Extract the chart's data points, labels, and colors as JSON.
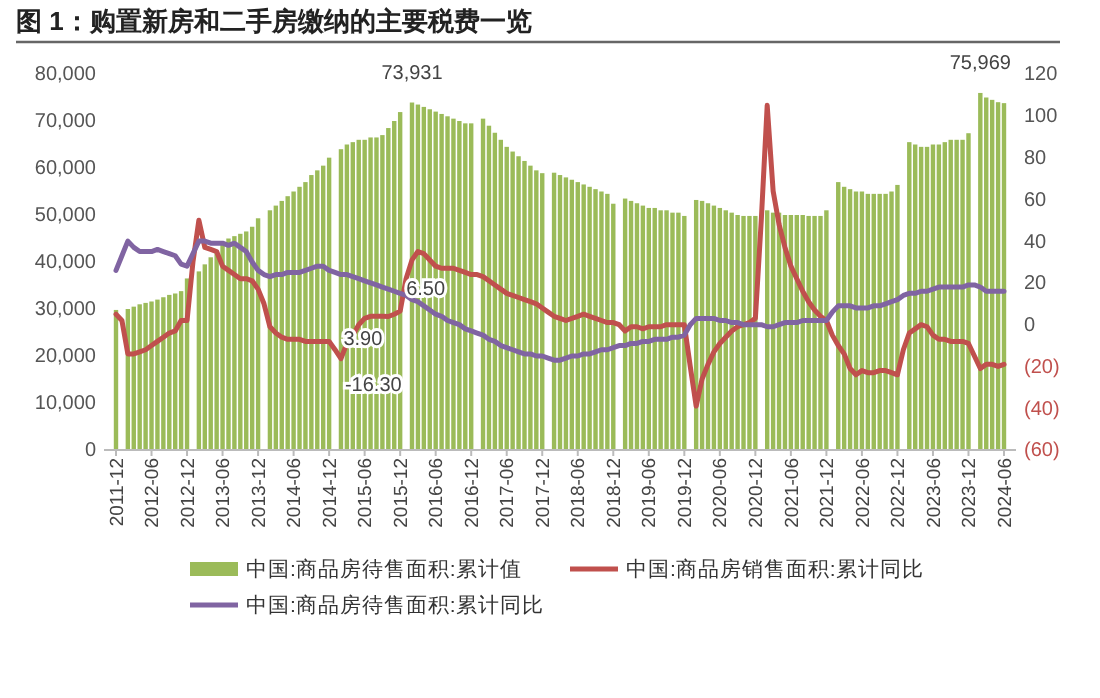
{
  "chart_data": {
    "type": "bar",
    "title": "图 1：购置新房和二手房缴纳的主要税费一览",
    "categories": [
      "2011-12",
      null,
      null,
      null,
      null,
      null,
      "2012-06",
      null,
      null,
      null,
      null,
      null,
      "2012-12",
      null,
      null,
      null,
      null,
      null,
      "2013-06",
      null,
      null,
      null,
      null,
      null,
      "2013-12",
      null,
      null,
      null,
      null,
      null,
      "2014-06",
      null,
      null,
      null,
      null,
      null,
      "2014-12",
      null,
      null,
      null,
      null,
      null,
      "2015-06",
      null,
      null,
      null,
      null,
      null,
      "2015-12",
      null,
      null,
      null,
      null,
      null,
      "2016-06",
      null,
      null,
      null,
      null,
      null,
      "2016-12",
      null,
      null,
      null,
      null,
      null,
      "2017-06",
      null,
      null,
      null,
      null,
      null,
      "2017-12",
      null,
      null,
      null,
      null,
      null,
      "2018-06",
      null,
      null,
      null,
      null,
      null,
      "2018-12",
      null,
      null,
      null,
      null,
      null,
      "2019-06",
      null,
      null,
      null,
      null,
      null,
      "2019-12",
      null,
      null,
      null,
      null,
      null,
      "2020-06",
      null,
      null,
      null,
      null,
      null,
      "2020-12",
      null,
      null,
      null,
      null,
      null,
      "2021-06",
      null,
      null,
      null,
      null,
      null,
      "2021-12",
      null,
      null,
      null,
      null,
      null,
      "2022-06",
      null,
      null,
      null,
      null,
      null,
      "2022-12",
      null,
      null,
      null,
      null,
      null,
      "2023-06",
      null,
      null,
      null,
      null,
      null,
      "2023-12",
      null,
      null,
      null,
      null,
      null,
      "2024-06"
    ],
    "series": [
      {
        "name": "中国:商品房待售面积:累计值",
        "color": "#9bbb59",
        "values": [
          29800,
          null,
          30000,
          30500,
          31000,
          31300,
          31600,
          32000,
          32500,
          33000,
          33300,
          33800,
          36500,
          null,
          38000,
          39500,
          41000,
          42500,
          44000,
          45000,
          45500,
          46000,
          46500,
          47500,
          49300,
          null,
          51000,
          52000,
          53000,
          54000,
          55000,
          56000,
          57000,
          58500,
          59500,
          60500,
          62200,
          null,
          64000,
          65000,
          65500,
          66000,
          66000,
          66500,
          66500,
          67000,
          68500,
          70000,
          71900,
          null,
          73931,
          73500,
          73000,
          72500,
          72000,
          71500,
          71000,
          70500,
          70000,
          69500,
          69500,
          null,
          70500,
          69000,
          67500,
          66000,
          64500,
          63500,
          62500,
          61500,
          60500,
          59500,
          58900,
          null,
          59000,
          58500,
          58000,
          57500,
          57000,
          56500,
          56000,
          55500,
          55000,
          54500,
          52400,
          null,
          53500,
          53000,
          52500,
          52000,
          51500,
          51500,
          51000,
          51000,
          50500,
          50500,
          49800,
          null,
          53200,
          53000,
          52500,
          52000,
          51500,
          51000,
          50500,
          50000,
          49800,
          49800,
          49800,
          null,
          51000,
          50500,
          50500,
          50000,
          50000,
          50000,
          50000,
          49800,
          49800,
          49800,
          51000,
          null,
          57000,
          56000,
          55500,
          55000,
          55000,
          54500,
          54500,
          54500,
          54500,
          55000,
          56400,
          null,
          65500,
          65000,
          64500,
          64500,
          65000,
          65000,
          65500,
          66000,
          66000,
          66000,
          67400,
          null,
          75969,
          75000,
          74500,
          74000,
          73800
        ],
        "value_labels": [
          null,
          null,
          null,
          null,
          null,
          null,
          null,
          null,
          null,
          null,
          null,
          null,
          null,
          null,
          null,
          null,
          null,
          null,
          null,
          null,
          null,
          null,
          null,
          null,
          null,
          null,
          null,
          null,
          null,
          null,
          null,
          null,
          null,
          null,
          null,
          null,
          null,
          null,
          null,
          null,
          null,
          null,
          null,
          null,
          null,
          null,
          null,
          null,
          null,
          null,
          "73,931",
          null,
          null,
          null,
          null,
          null,
          null,
          null,
          null,
          null,
          null,
          null,
          null,
          null,
          null,
          null,
          null,
          null,
          null,
          null,
          null,
          null,
          null,
          null,
          null,
          null,
          null,
          null,
          null,
          null,
          null,
          null,
          null,
          null,
          null,
          null,
          null,
          null,
          null,
          null,
          null,
          null,
          null,
          null,
          null,
          null,
          null,
          null,
          null,
          null,
          null,
          null,
          null,
          null,
          null,
          null,
          null,
          null,
          null,
          null,
          null,
          null,
          null,
          null,
          null,
          null,
          null,
          null,
          null,
          null,
          null,
          null,
          null,
          null,
          null,
          null,
          null,
          null,
          null,
          null,
          null,
          null,
          null,
          null,
          null,
          null,
          null,
          null,
          null,
          null,
          null,
          null,
          null,
          null,
          null,
          null,
          "75,969",
          null,
          null,
          null,
          null
        ]
      },
      {
        "name": "中国:商品房销售面积:累计同比",
        "type": "line",
        "axis": "y2",
        "color": "#c0504d",
        "values": [
          5,
          2,
          -14,
          -14,
          -13,
          -12,
          -10,
          -8,
          -6,
          -4,
          -3,
          2,
          2,
          30,
          50,
          37,
          36,
          35,
          28,
          26,
          24,
          22,
          22,
          21,
          17,
          10,
          -1,
          -4,
          -6,
          -7,
          -7,
          -7,
          -8,
          -8,
          -8,
          -8,
          -8,
          -12,
          -16.3,
          -9,
          -5,
          0,
          3,
          4,
          4,
          4,
          3.9,
          5,
          6.5,
          22,
          31,
          35,
          34,
          31,
          28,
          27,
          27,
          27,
          26,
          25,
          24,
          24,
          23,
          21,
          19,
          17,
          15,
          14,
          13,
          12,
          11,
          10,
          8,
          6,
          4,
          3,
          2,
          3,
          4,
          5,
          4,
          3,
          2,
          1,
          1,
          0,
          -3,
          -1,
          -1,
          -2,
          -1,
          -1,
          -1,
          0,
          0,
          0,
          0,
          -20,
          -39,
          -26,
          -19,
          -13,
          -9,
          -6,
          -3,
          -1,
          0,
          1,
          3,
          50,
          105,
          64,
          48,
          37,
          28,
          22,
          16,
          11,
          7,
          4,
          2,
          -5,
          -10,
          -14,
          -21,
          -24,
          -22,
          -23,
          -23,
          -22,
          -22,
          -23,
          -24,
          -12,
          -4,
          -2,
          0,
          -1,
          -5,
          -7,
          -7,
          -8,
          -8,
          -8,
          -9,
          -15,
          -21,
          -19,
          -19,
          -20,
          -19
        ],
        "value_labels": [
          null,
          null,
          null,
          null,
          null,
          null,
          null,
          null,
          null,
          null,
          null,
          null,
          null,
          null,
          null,
          null,
          null,
          null,
          null,
          null,
          null,
          null,
          null,
          null,
          null,
          null,
          null,
          null,
          null,
          null,
          null,
          null,
          null,
          null,
          null,
          null,
          null,
          null,
          "-16.30",
          null,
          null,
          null,
          null,
          null,
          null,
          null,
          "3.90",
          null,
          "6.50",
          null,
          null,
          null,
          null,
          null,
          null,
          null,
          null,
          null,
          null,
          null,
          null,
          null,
          null,
          null,
          null,
          null,
          null,
          null,
          null,
          null,
          null,
          null,
          null,
          null,
          null,
          null,
          null,
          null,
          null,
          null,
          null,
          null,
          null,
          null,
          null,
          null,
          null,
          null,
          null,
          null,
          null,
          null,
          null,
          null,
          null,
          null,
          null,
          null,
          null,
          null,
          null,
          null,
          null,
          null,
          null,
          null,
          null,
          null,
          null,
          null,
          null,
          null,
          null,
          null,
          null,
          null,
          null,
          null,
          null,
          null,
          null,
          null,
          null,
          null,
          null,
          null,
          null,
          null,
          null,
          null,
          null,
          null,
          null,
          null,
          null,
          null,
          null,
          null,
          null,
          null,
          null,
          null,
          null,
          null,
          null,
          null,
          null,
          null,
          null,
          null,
          null
        ]
      },
      {
        "name": "中国:商品房待售面积:累计同比",
        "type": "line",
        "axis": "y2",
        "color": "#8064a2",
        "values": [
          26,
          33,
          40,
          37,
          35,
          35,
          35,
          36,
          35,
          34,
          33,
          29,
          28,
          34,
          40,
          40,
          39,
          39,
          39,
          38,
          39,
          37,
          35,
          30,
          26,
          24,
          23,
          24,
          24,
          25,
          25,
          25,
          26,
          27,
          28,
          28,
          26,
          25,
          24,
          24,
          23,
          22,
          21,
          20,
          19,
          18,
          17,
          16,
          15,
          14,
          12,
          11,
          9,
          7,
          5,
          4,
          2,
          1,
          0,
          -2,
          -3,
          -4,
          -5,
          -7,
          -8,
          -10,
          -11,
          -12,
          -13,
          -14,
          -14,
          -15,
          -15,
          -16,
          -17,
          -17,
          -16,
          -15,
          -15,
          -14,
          -14,
          -13,
          -12,
          -12,
          -11,
          -10,
          -10,
          -9,
          -9,
          -8,
          -8,
          -7,
          -7,
          -7,
          -6,
          -6,
          -5,
          0,
          3,
          3,
          3,
          3,
          2,
          2,
          1,
          1,
          0,
          0,
          0,
          0,
          -1,
          -1,
          0,
          1,
          1,
          1,
          2,
          2,
          2,
          2,
          2,
          6,
          9,
          9,
          9,
          8,
          8,
          8,
          9,
          9,
          10,
          11,
          12,
          14,
          15,
          15,
          16,
          16,
          17,
          18,
          18,
          18,
          18,
          18,
          19,
          19,
          18,
          16,
          16,
          16,
          16
        ]
      }
    ],
    "ylim": [
      0,
      80000
    ],
    "yticks": [
      {
        "value": 0,
        "label": "0"
      },
      {
        "value": 10000,
        "label": "10,000"
      },
      {
        "value": 20000,
        "label": "20,000"
      },
      {
        "value": 30000,
        "label": "30,000"
      },
      {
        "value": 40000,
        "label": "40,000"
      },
      {
        "value": 50000,
        "label": "50,000"
      },
      {
        "value": 60000,
        "label": "60,000"
      },
      {
        "value": 70000,
        "label": "70,000"
      },
      {
        "value": 80000,
        "label": "80,000"
      }
    ],
    "y2lim": [
      -60,
      120
    ],
    "y2ticks": [
      {
        "value": -60,
        "label": "(60)"
      },
      {
        "value": -40,
        "label": "(40)"
      },
      {
        "value": -20,
        "label": "(20)"
      },
      0,
      20,
      40,
      60,
      80,
      100,
      120
    ],
    "legend": "bottom",
    "grid": false,
    "marker": "none",
    "line_style": "solid"
  }
}
